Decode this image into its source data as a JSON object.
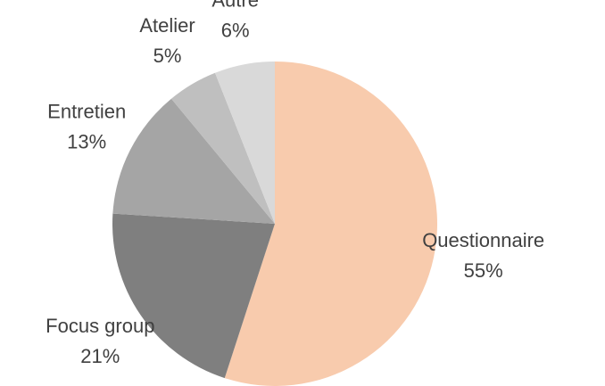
{
  "chart_data": {
    "type": "pie",
    "categories": [
      "Questionnaire",
      "Focus group",
      "Entretien",
      "Atelier",
      "Autre"
    ],
    "values": [
      55,
      21,
      13,
      5,
      6
    ],
    "value_labels": [
      "55%",
      "21%",
      "13%",
      "5%",
      "6%"
    ],
    "colors": [
      "#f8cbad",
      "#7f7f7f",
      "#a5a5a5",
      "#bfbfbf",
      "#d9d9d9"
    ]
  }
}
